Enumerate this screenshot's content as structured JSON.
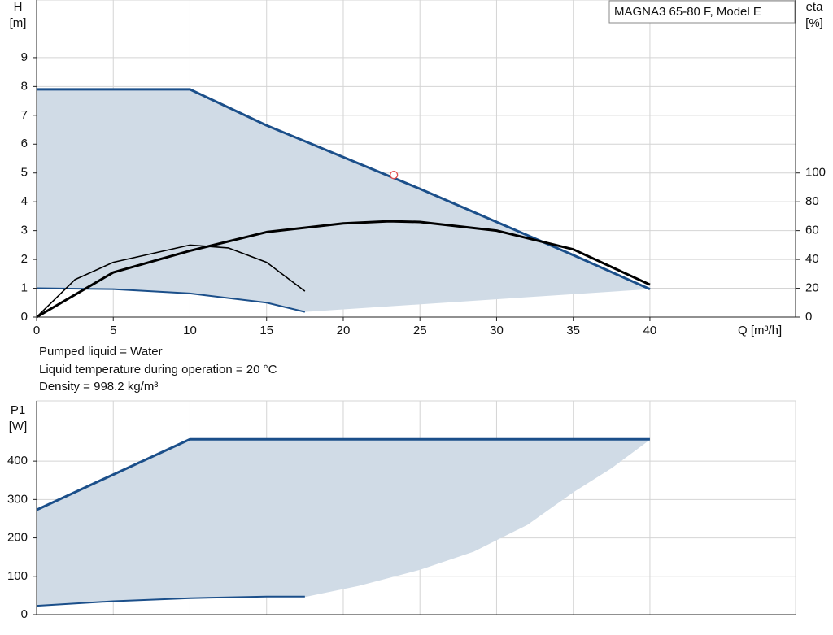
{
  "title_box": "MAGNA3 65-80 F, Model E",
  "notes": [
    "Pumped liquid = Water",
    "Liquid temperature during operation = 20 °C",
    "Density = 998.2 kg/m³"
  ],
  "chart_data": [
    {
      "type": "line",
      "ylabel": "H",
      "yunit": "[m]",
      "y2label": "eta",
      "y2unit": "[%]",
      "xlabel": "Q [m³/h]",
      "xlim": [
        0,
        49.5
      ],
      "xticks": [
        0,
        5,
        10,
        15,
        20,
        25,
        30,
        35,
        40
      ],
      "ylim": [
        0,
        11
      ],
      "yticks": [
        0,
        1,
        2,
        3,
        4,
        5,
        6,
        7,
        8,
        9
      ],
      "y2lim": [
        0,
        220
      ],
      "y2ticks": [
        0,
        20,
        40,
        60,
        80,
        100
      ],
      "grid": true,
      "fill_color": "#d0dbe6",
      "series": [
        {
          "color": "#1b4f8a",
          "x": [
            0,
            10,
            15,
            20,
            25,
            30,
            35,
            40
          ],
          "values": [
            7.9,
            7.9,
            6.65,
            5.55,
            4.45,
            3.3,
            2.15,
            0.97
          ]
        },
        {
          "color": "#1b4f8a",
          "x": [
            0,
            5,
            10,
            15,
            17.5
          ],
          "values": [
            1.0,
            0.97,
            0.82,
            0.5,
            0.18
          ]
        },
        {
          "color": "#000000",
          "axis": "y2",
          "x": [
            0,
            5,
            10,
            15,
            20,
            23,
            25,
            30,
            35,
            40
          ],
          "values": [
            0,
            31,
            46,
            59,
            65,
            66.5,
            66,
            60,
            47,
            22.5
          ]
        },
        {
          "color": "#000000",
          "axis": "y2",
          "x": [
            0,
            2.5,
            5,
            10,
            12.5,
            15,
            17.5
          ],
          "values": [
            0,
            26,
            38,
            50,
            48,
            38,
            18
          ]
        }
      ],
      "point": {
        "x": 23.3,
        "y": 4.93,
        "color": "#e05050"
      }
    },
    {
      "type": "line",
      "ylabel": "P1",
      "yunit": "[W]",
      "xlim": [
        0,
        49.5
      ],
      "ylim": [
        0,
        557
      ],
      "yticks": [
        0,
        100,
        200,
        300,
        400
      ],
      "grid": true,
      "fill_color": "#d0dbe6",
      "series": [
        {
          "color": "#1b4f8a",
          "x": [
            0,
            10,
            40
          ],
          "values": [
            273,
            457,
            457
          ]
        },
        {
          "color": "#1b4f8a",
          "x": [
            0,
            5,
            10,
            15,
            17.5
          ],
          "values": [
            23,
            35,
            43,
            47,
            47
          ]
        }
      ],
      "fill_edge": {
        "x": [
          17.5,
          21,
          25,
          28.5,
          32,
          35,
          37.5,
          40
        ],
        "values": [
          47,
          76,
          118,
          165,
          235,
          320,
          383,
          457
        ]
      }
    }
  ]
}
